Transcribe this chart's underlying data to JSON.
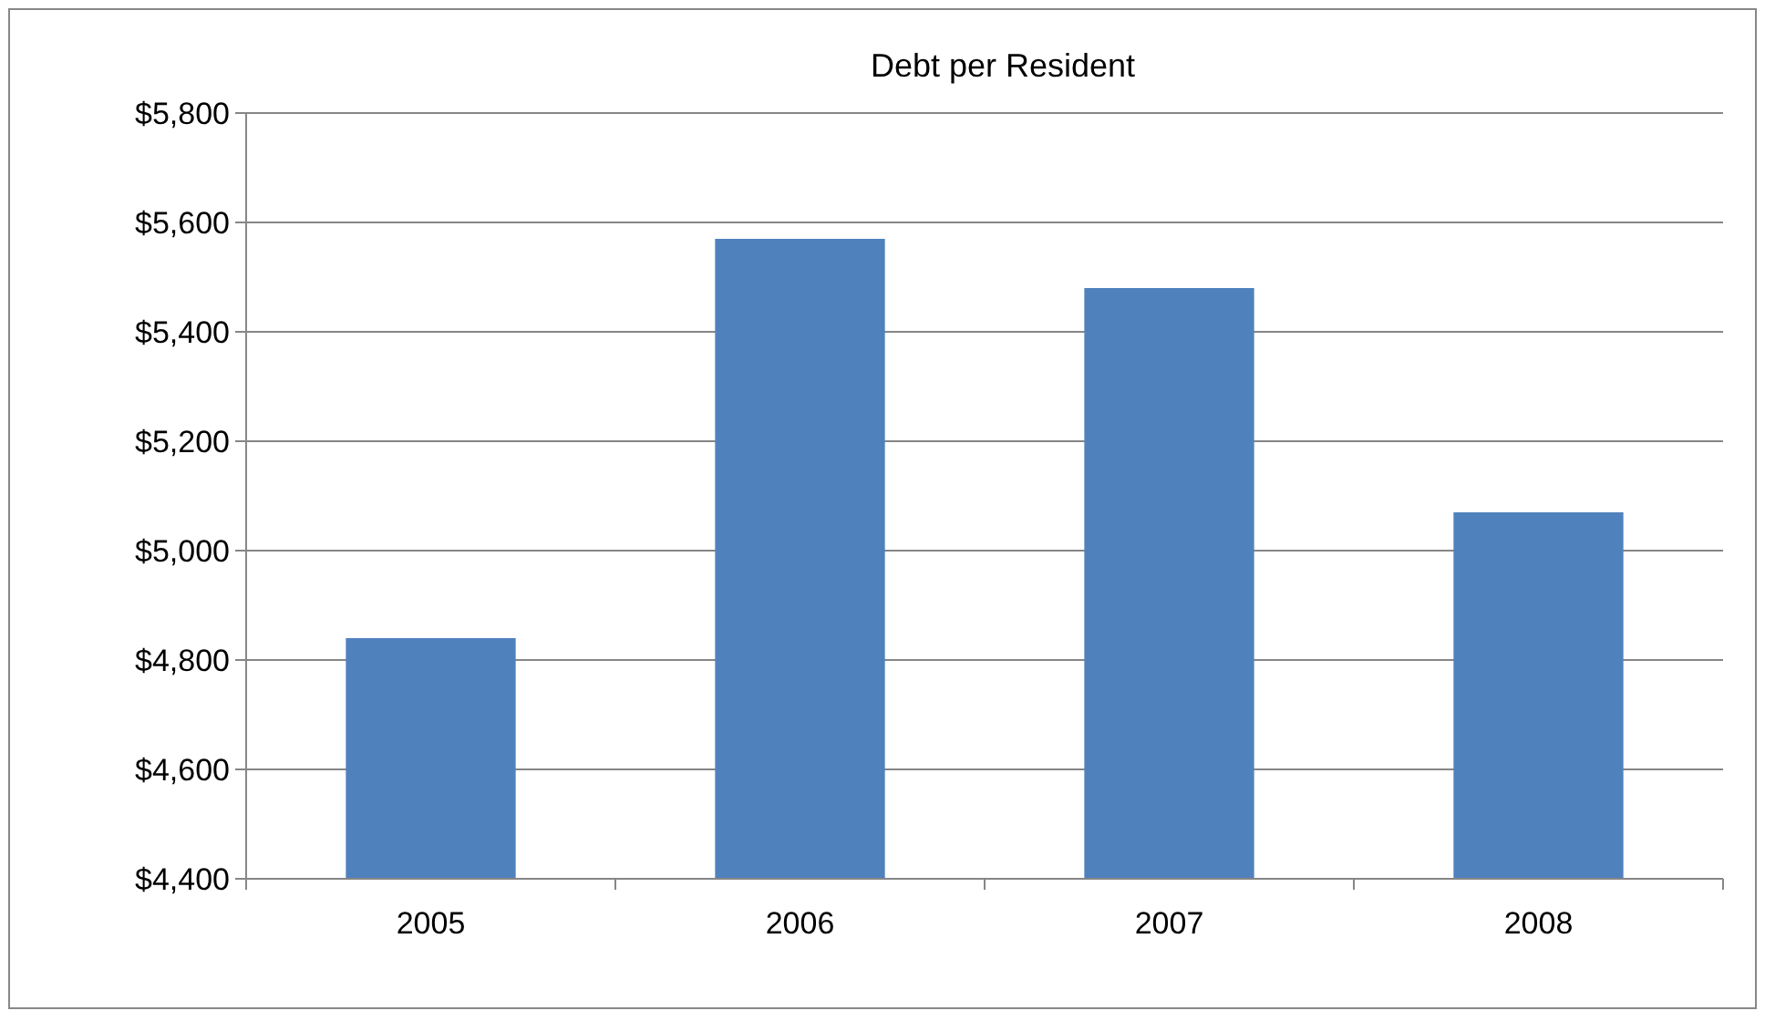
{
  "chart_data": {
    "type": "bar",
    "title": "Debt per Resident",
    "categories": [
      "2005",
      "2006",
      "2007",
      "2008"
    ],
    "values": [
      4840,
      5570,
      5480,
      5070
    ],
    "color": "#4f81bd",
    "ylim": [
      4400,
      5800
    ],
    "yticks": [
      {
        "value": 4400,
        "label": "$4,400"
      },
      {
        "value": 4600,
        "label": "$4,600"
      },
      {
        "value": 4800,
        "label": "$4,800"
      },
      {
        "value": 5000,
        "label": "$5,000"
      },
      {
        "value": 5200,
        "label": "$5,200"
      },
      {
        "value": 5400,
        "label": "$5,400"
      },
      {
        "value": 5600,
        "label": "$5,600"
      },
      {
        "value": 5800,
        "label": "$5,800"
      }
    ],
    "grid": "y"
  }
}
